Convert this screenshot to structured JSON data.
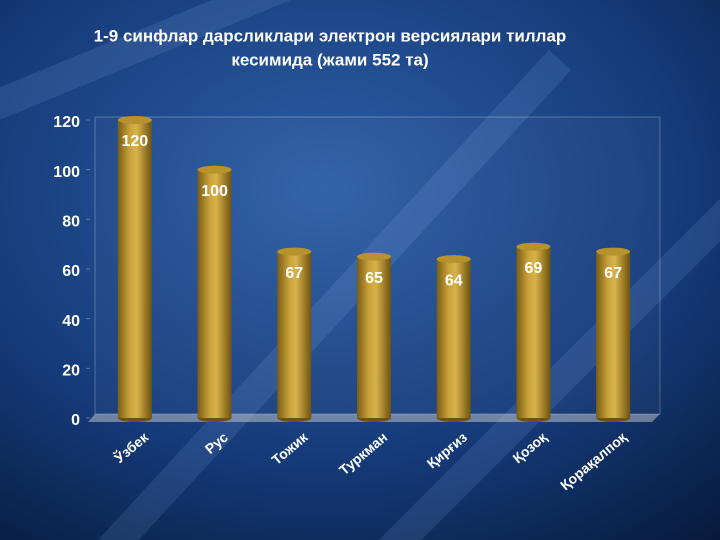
{
  "chart_data": {
    "type": "bar",
    "title": [
      "1-9 синфлар дарсликлари электрон версиялари тиллар",
      "кесимида (жами 552 та)"
    ],
    "categories": [
      "Ўзбек",
      "Рус",
      "Тожик",
      "Туркман",
      "Қирғиз",
      "Қозоқ",
      "Қорақалпоқ"
    ],
    "values": [
      120,
      100,
      67,
      65,
      64,
      69,
      67
    ],
    "color": "#b8922c",
    "ylim": [
      0,
      120
    ],
    "yticks": [
      0,
      20,
      40,
      60,
      80,
      100,
      120
    ],
    "grid": false
  }
}
